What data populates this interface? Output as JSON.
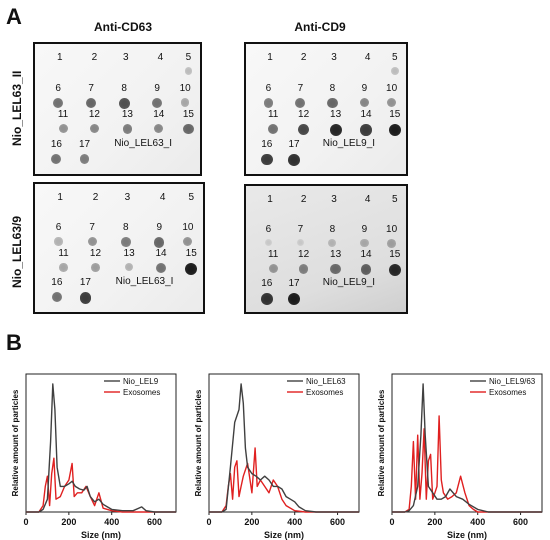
{
  "panel_a": {
    "letter": "A",
    "columns": [
      "Anti-CD63",
      "Anti-CD9"
    ],
    "rows": [
      "Nio_LEL63_II",
      "Nio_LEL63/9"
    ],
    "blots": [
      {
        "numbers": [
          "1",
          "2",
          "3",
          "4",
          "5",
          "6",
          "7",
          "8",
          "9",
          "10",
          "11",
          "12",
          "13",
          "14",
          "15",
          "16",
          "17"
        ],
        "caption": "Nio_LEL63_I",
        "intensity": [
          0,
          0,
          0,
          0,
          0.15,
          0.5,
          0.55,
          0.65,
          0.5,
          0.25,
          0.35,
          0.4,
          0.45,
          0.4,
          0.55,
          0.5,
          0.45
        ]
      },
      {
        "numbers": [
          "1",
          "2",
          "3",
          "4",
          "5",
          "6",
          "7",
          "8",
          "9",
          "10",
          "11",
          "12",
          "13",
          "14",
          "15",
          "16",
          "17"
        ],
        "caption": "Nio_LEL9_I",
        "intensity": [
          0,
          0,
          0,
          0,
          0.15,
          0.45,
          0.5,
          0.55,
          0.4,
          0.35,
          0.5,
          0.7,
          0.85,
          0.75,
          0.9,
          0.75,
          0.8
        ]
      },
      {
        "numbers": [
          "1",
          "2",
          "3",
          "4",
          "5",
          "6",
          "7",
          "8",
          "9",
          "10",
          "11",
          "12",
          "13",
          "14",
          "15",
          "16",
          "17"
        ],
        "caption": "Nio_LEL63_I",
        "intensity": [
          0,
          0,
          0,
          0,
          0,
          0.2,
          0.35,
          0.45,
          0.55,
          0.35,
          0.25,
          0.3,
          0.2,
          0.5,
          0.9,
          0.5,
          0.75
        ]
      },
      {
        "numbers": [
          "1",
          "2",
          "3",
          "4",
          "5",
          "6",
          "7",
          "8",
          "9",
          "10",
          "11",
          "12",
          "13",
          "14",
          "15",
          "16",
          "17"
        ],
        "caption": "Nio_LEL9_I",
        "intensity": [
          0,
          0,
          0,
          0,
          0,
          0.1,
          0.1,
          0.2,
          0.25,
          0.3,
          0.35,
          0.45,
          0.55,
          0.6,
          0.85,
          0.8,
          0.9
        ]
      }
    ]
  },
  "panel_b": {
    "letter": "B"
  },
  "chart_data": [
    {
      "type": "line",
      "title": "",
      "xlabel": "Size (nm)",
      "ylabel": "Relative amount of particles",
      "xlim": [
        0,
        700
      ],
      "xticks": [
        "0",
        "200",
        "400",
        "600"
      ],
      "ylim": [
        0,
        1
      ],
      "legend_position": "top-right",
      "series": [
        {
          "name": "Nio_LEL9",
          "color": "#404040",
          "x": [
            0,
            60,
            80,
            100,
            115,
            125,
            135,
            145,
            160,
            180,
            200,
            215,
            230,
            250,
            270,
            285,
            300,
            320,
            340,
            360,
            380,
            400,
            450,
            500,
            540,
            560,
            600,
            700
          ],
          "y": [
            0,
            0,
            0.02,
            0.1,
            0.55,
            1.0,
            0.8,
            0.35,
            0.2,
            0.2,
            0.22,
            0.24,
            0.2,
            0.18,
            0.17,
            0.2,
            0.12,
            0.08,
            0.1,
            0.06,
            0.04,
            0.02,
            0.01,
            0.01,
            0.04,
            0.01,
            0,
            0
          ]
        },
        {
          "name": "Exosomes",
          "color": "#e02020",
          "x": [
            0,
            60,
            80,
            90,
            100,
            110,
            120,
            130,
            140,
            160,
            180,
            200,
            215,
            225,
            240,
            260,
            280,
            300,
            320,
            340,
            360,
            400,
            450,
            500,
            700
          ],
          "y": [
            0,
            0,
            0.05,
            0.2,
            0.28,
            0.05,
            0.3,
            0.42,
            0.1,
            0.12,
            0.2,
            0.25,
            0.38,
            0.12,
            0.15,
            0.15,
            0.2,
            0.12,
            0.05,
            0.15,
            0.03,
            0.01,
            0,
            0,
            0
          ]
        }
      ]
    },
    {
      "type": "line",
      "title": "",
      "xlabel": "Size (nm)",
      "ylabel": "Relative amount of particles",
      "xlim": [
        0,
        700
      ],
      "xticks": [
        "0",
        "200",
        "400",
        "600"
      ],
      "ylim": [
        0,
        1
      ],
      "legend_position": "top-right",
      "series": [
        {
          "name": "Nio_LEL63",
          "color": "#404040",
          "x": [
            0,
            60,
            80,
            100,
            120,
            140,
            150,
            160,
            170,
            180,
            200,
            220,
            240,
            260,
            280,
            300,
            320,
            340,
            360,
            380,
            400,
            420,
            450,
            500,
            700
          ],
          "y": [
            0,
            0,
            0.02,
            0.35,
            0.7,
            0.8,
            1.0,
            0.85,
            0.5,
            0.35,
            0.3,
            0.28,
            0.25,
            0.28,
            0.25,
            0.2,
            0.2,
            0.18,
            0.12,
            0.1,
            0.08,
            0.04,
            0.01,
            0,
            0
          ]
        },
        {
          "name": "Exosomes",
          "color": "#e02020",
          "x": [
            0,
            60,
            80,
            90,
            100,
            110,
            120,
            130,
            140,
            150,
            160,
            180,
            200,
            215,
            225,
            240,
            260,
            280,
            300,
            320,
            340,
            360,
            400,
            450,
            700
          ],
          "y": [
            0,
            0,
            0.05,
            0.2,
            0.3,
            0.1,
            0.35,
            0.4,
            0.12,
            0.2,
            0.28,
            0.38,
            0.15,
            0.5,
            0.2,
            0.25,
            0.2,
            0.15,
            0.25,
            0.2,
            0.1,
            0.05,
            0.01,
            0,
            0
          ]
        }
      ]
    },
    {
      "type": "line",
      "title": "",
      "xlabel": "Size (nm)",
      "ylabel": "Relative amount of particles",
      "xlim": [
        0,
        700
      ],
      "xticks": [
        "0",
        "200",
        "400",
        "600"
      ],
      "ylim": [
        0,
        1
      ],
      "legend_position": "top-right",
      "series": [
        {
          "name": "Nio_LEL9/63",
          "color": "#404040",
          "x": [
            0,
            60,
            80,
            100,
            120,
            135,
            145,
            155,
            170,
            190,
            210,
            230,
            250,
            270,
            300,
            330,
            360,
            400,
            450,
            700
          ],
          "y": [
            0,
            0,
            0.01,
            0.05,
            0.2,
            0.6,
            1.0,
            0.6,
            0.2,
            0.15,
            0.1,
            0.1,
            0.12,
            0.18,
            0.12,
            0.1,
            0.06,
            0.02,
            0,
            0
          ]
        },
        {
          "name": "Exosomes",
          "color": "#e02020",
          "x": [
            0,
            60,
            80,
            90,
            100,
            110,
            120,
            130,
            140,
            150,
            160,
            170,
            180,
            190,
            200,
            210,
            220,
            230,
            240,
            260,
            280,
            300,
            320,
            340,
            360,
            380,
            400,
            700
          ],
          "y": [
            0,
            0,
            0.02,
            0.2,
            0.55,
            0.1,
            0.6,
            0.1,
            0.3,
            0.65,
            0.1,
            0.4,
            0.45,
            0.1,
            0.15,
            0.2,
            0.75,
            0.25,
            0.15,
            0.1,
            0.12,
            0.15,
            0.28,
            0.15,
            0.05,
            0.02,
            0,
            0
          ]
        }
      ]
    }
  ]
}
